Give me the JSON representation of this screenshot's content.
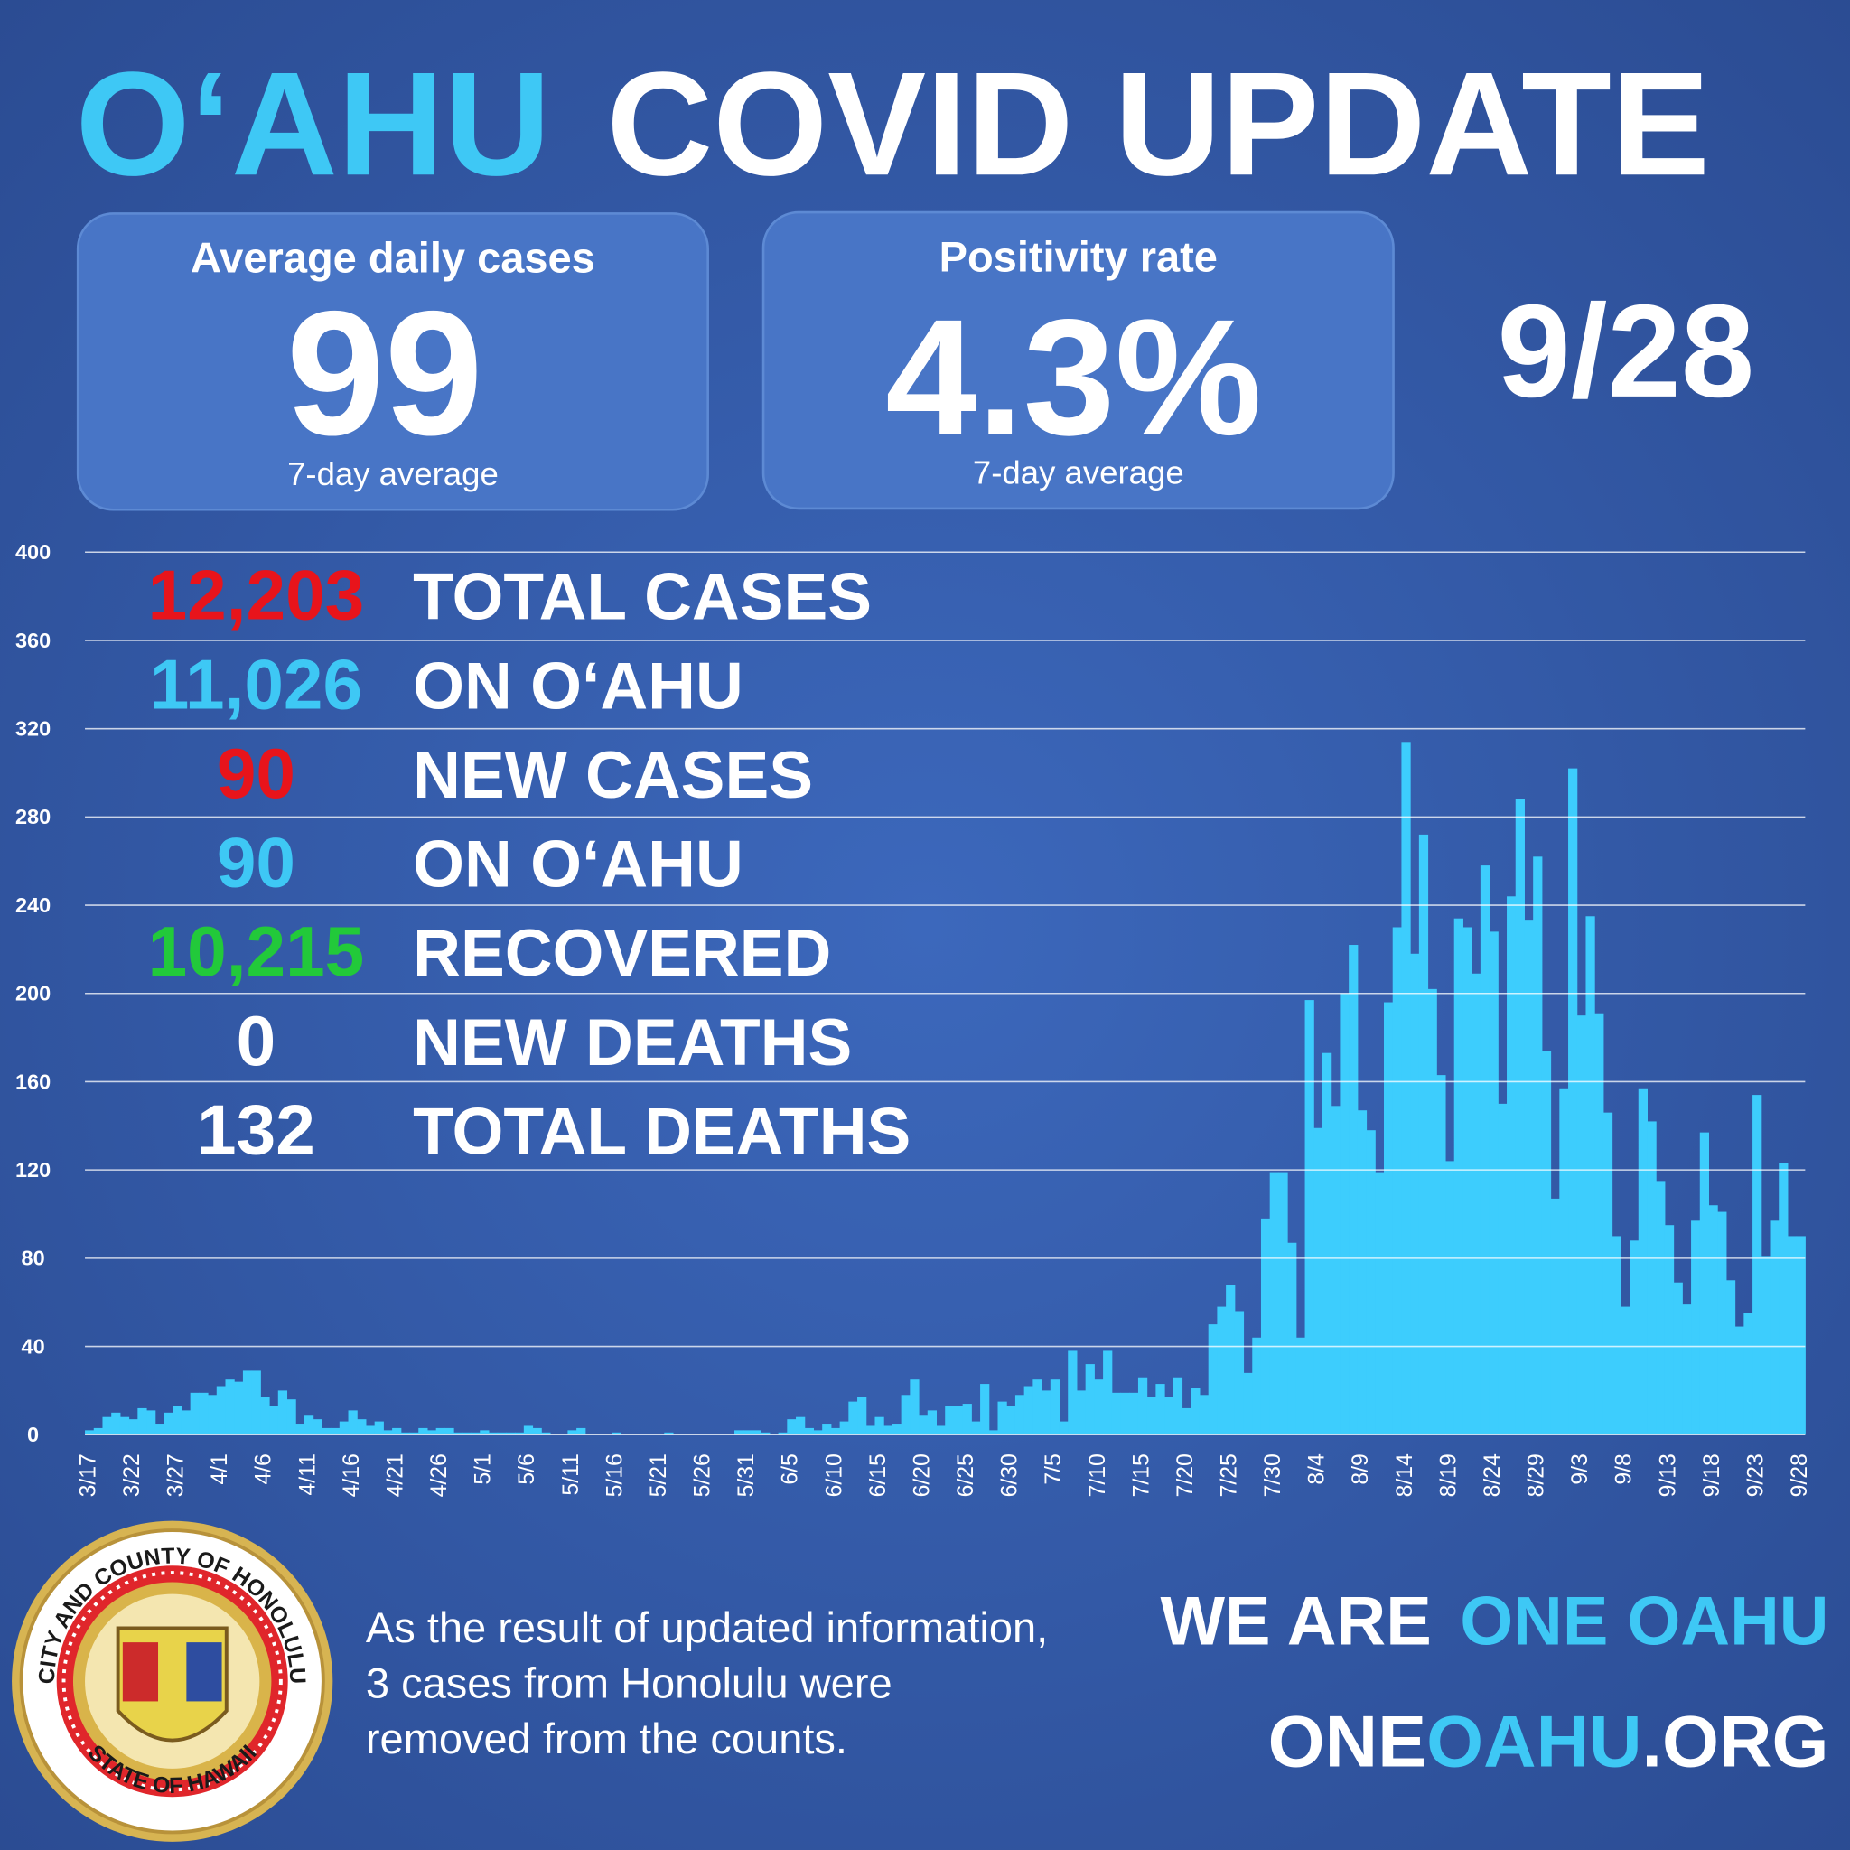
{
  "title": {
    "part1": "O‘AHU",
    "part2": "COVID UPDATE"
  },
  "stat_boxes": [
    {
      "label": "Average daily cases",
      "value": "99",
      "note": "7-day average"
    },
    {
      "label": "Positivity rate",
      "value": "4.3%",
      "note": "7-day average"
    }
  ],
  "date": "9/28",
  "summary": [
    {
      "number": "12,203",
      "label": "TOTAL CASES",
      "color": "#e8141b"
    },
    {
      "number": "11,026",
      "label": "ON O‘AHU",
      "color": "#3ec8f5"
    },
    {
      "number": "90",
      "label": "NEW CASES",
      "color": "#e8141b"
    },
    {
      "number": "90",
      "label": "ON O‘AHU",
      "color": "#3ec8f5"
    },
    {
      "number": "10,215",
      "label": "RECOVERED",
      "color": "#22c93a"
    },
    {
      "number": "0",
      "label": "NEW DEATHS",
      "color": "#ffffff"
    },
    {
      "number": "132",
      "label": "TOTAL DEATHS",
      "color": "#ffffff"
    }
  ],
  "chart_data": {
    "type": "bar",
    "color": "#3dcdfd",
    "grid": true,
    "ylim": [
      0,
      400
    ],
    "yticks": [
      0,
      40,
      80,
      120,
      160,
      200,
      240,
      280,
      320,
      360,
      400
    ],
    "categories": [
      "3/17",
      null,
      null,
      null,
      null,
      "3/22",
      null,
      null,
      null,
      null,
      "3/27",
      null,
      null,
      null,
      null,
      "4/1",
      null,
      null,
      null,
      null,
      "4/6",
      null,
      null,
      null,
      null,
      "4/11",
      null,
      null,
      null,
      null,
      "4/16",
      null,
      null,
      null,
      null,
      "4/21",
      null,
      null,
      null,
      null,
      "4/26",
      null,
      null,
      null,
      null,
      "5/1",
      null,
      null,
      null,
      null,
      "5/6",
      null,
      null,
      null,
      null,
      "5/11",
      null,
      null,
      null,
      null,
      "5/16",
      null,
      null,
      null,
      null,
      "5/21",
      null,
      null,
      null,
      null,
      "5/26",
      null,
      null,
      null,
      null,
      "5/31",
      null,
      null,
      null,
      null,
      "6/5",
      null,
      null,
      null,
      null,
      "6/10",
      null,
      null,
      null,
      null,
      "6/15",
      null,
      null,
      null,
      null,
      "6/20",
      null,
      null,
      null,
      null,
      "6/25",
      null,
      null,
      null,
      null,
      "6/30",
      null,
      null,
      null,
      null,
      "7/5",
      null,
      null,
      null,
      null,
      "7/10",
      null,
      null,
      null,
      null,
      "7/15",
      null,
      null,
      null,
      null,
      "7/20",
      null,
      null,
      null,
      null,
      "7/25",
      null,
      null,
      null,
      null,
      "7/30",
      null,
      null,
      null,
      null,
      "8/4",
      null,
      null,
      null,
      null,
      "8/9",
      null,
      null,
      null,
      null,
      "8/14",
      null,
      null,
      null,
      null,
      "8/19",
      null,
      null,
      null,
      null,
      "8/24",
      null,
      null,
      null,
      null,
      "8/29",
      null,
      null,
      null,
      null,
      "9/3",
      null,
      null,
      null,
      null,
      "9/8",
      null,
      null,
      null,
      null,
      "9/13",
      null,
      null,
      null,
      null,
      "9/18",
      null,
      null,
      null,
      null,
      "9/23",
      null,
      null,
      null,
      null,
      "9/28"
    ],
    "values": [
      2,
      3,
      8,
      10,
      8,
      7,
      12,
      11,
      5,
      10,
      13,
      11,
      19,
      19,
      18,
      22,
      25,
      24,
      29,
      29,
      17,
      13,
      20,
      16,
      5,
      9,
      7,
      3,
      3,
      6,
      11,
      7,
      4,
      6,
      2,
      3,
      1,
      1,
      3,
      2,
      3,
      3,
      1,
      1,
      1,
      2,
      1,
      1,
      1,
      1,
      4,
      3,
      1,
      0,
      0,
      2,
      3,
      0,
      0,
      0,
      1,
      0,
      0,
      0,
      0,
      0,
      1,
      0,
      0,
      0,
      0,
      0,
      0,
      0,
      2,
      2,
      2,
      1,
      0,
      1,
      7,
      8,
      3,
      2,
      5,
      3,
      6,
      15,
      17,
      4,
      8,
      4,
      5,
      18,
      25,
      9,
      11,
      4,
      13,
      13,
      14,
      6,
      23,
      2,
      15,
      13,
      18,
      22,
      25,
      20,
      25,
      6,
      38,
      20,
      32,
      25,
      38,
      19,
      19,
      19,
      26,
      17,
      23,
      17,
      26,
      12,
      21,
      18,
      50,
      58,
      68,
      56,
      28,
      44,
      98,
      119,
      119,
      87,
      44,
      197,
      139,
      173,
      149,
      200,
      222,
      147,
      138,
      119,
      196,
      230,
      314,
      218,
      272,
      202,
      163,
      124,
      234,
      230,
      209,
      258,
      228,
      150,
      244,
      288,
      233,
      262,
      174,
      107,
      157,
      302,
      190,
      235,
      191,
      146,
      90,
      58,
      88,
      157,
      142,
      115,
      95,
      69,
      59,
      97,
      137,
      104,
      101,
      70,
      49,
      55,
      154,
      81,
      97,
      123,
      90,
      90
    ]
  },
  "footnote": [
    "As the result of updated information,",
    "3 cases from Honolulu were",
    "removed from the counts."
  ],
  "slogan": {
    "part1": "WE ARE",
    "part2": "ONE OAHU"
  },
  "website": {
    "part1": "ONE",
    "part2": "OAHU",
    "part3": ".ORG"
  },
  "seal": {
    "top": "CITY AND COUNTY OF HONOLULU",
    "bottom": "STATE OF HAWAII"
  }
}
